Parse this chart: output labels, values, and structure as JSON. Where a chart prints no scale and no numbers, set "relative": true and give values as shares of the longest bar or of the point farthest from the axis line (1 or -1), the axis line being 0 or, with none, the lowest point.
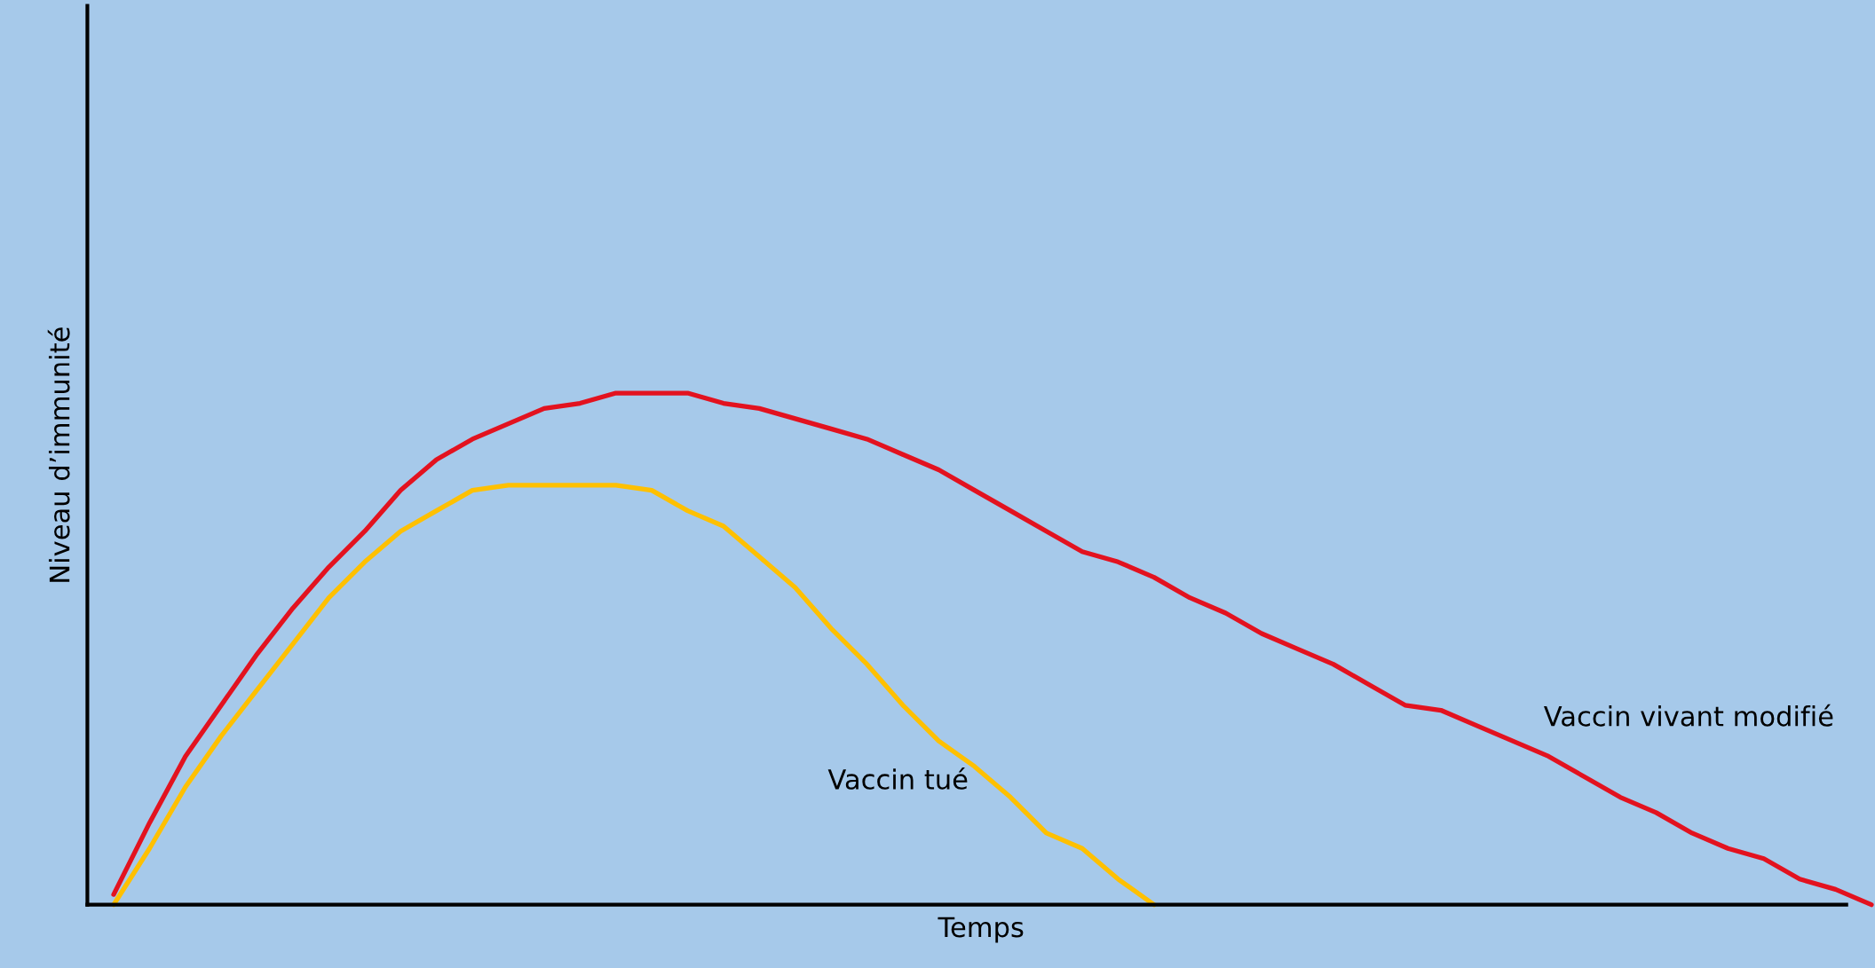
{
  "chart_data": {
    "type": "line",
    "relative": true,
    "xlabel": "Temps",
    "ylabel": "Niveau d’immunité",
    "legend": false,
    "grid": false,
    "categories": [
      null,
      null,
      null,
      null,
      null,
      null,
      null,
      null,
      null,
      null,
      null,
      null,
      null,
      null,
      null,
      null,
      null,
      null,
      null,
      null,
      null,
      null,
      null,
      null,
      null,
      null,
      null,
      null,
      null,
      null,
      null,
      null,
      null,
      null,
      null,
      null,
      null,
      null,
      null,
      null,
      null,
      null,
      null,
      null,
      null,
      null,
      null,
      null,
      null,
      null
    ],
    "series": [
      {
        "name": "Vaccin vivant modifié",
        "color": "#e3121f",
        "values": [
          0.02,
          0.16,
          0.29,
          0.39,
          0.49,
          0.58,
          0.66,
          0.73,
          0.81,
          0.87,
          0.91,
          0.94,
          0.97,
          0.98,
          1.0,
          1.0,
          1.0,
          0.98,
          0.97,
          0.95,
          0.93,
          0.91,
          0.88,
          0.85,
          0.81,
          0.77,
          0.73,
          0.69,
          0.67,
          0.64,
          0.6,
          0.57,
          0.53,
          0.5,
          0.47,
          0.43,
          0.39,
          0.38,
          0.35,
          0.32,
          0.29,
          0.25,
          0.21,
          0.18,
          0.14,
          0.11,
          0.09,
          0.05,
          0.03,
          0.0
        ]
      },
      {
        "name": "Vaccin tué",
        "color": "#ffc000",
        "values": [
          0.0,
          0.11,
          0.23,
          0.33,
          0.42,
          0.51,
          0.6,
          0.67,
          0.73,
          0.77,
          0.81,
          0.82,
          0.82,
          0.82,
          0.82,
          0.81,
          0.77,
          0.74,
          0.68,
          0.62,
          0.54,
          0.47,
          0.39,
          0.32,
          0.27,
          0.21,
          0.14,
          0.11,
          0.05,
          0.0,
          null,
          null,
          null,
          null,
          null,
          null,
          null,
          null,
          null,
          null,
          null,
          null,
          null,
          null,
          null,
          null,
          null,
          null,
          null,
          null
        ]
      }
    ]
  }
}
